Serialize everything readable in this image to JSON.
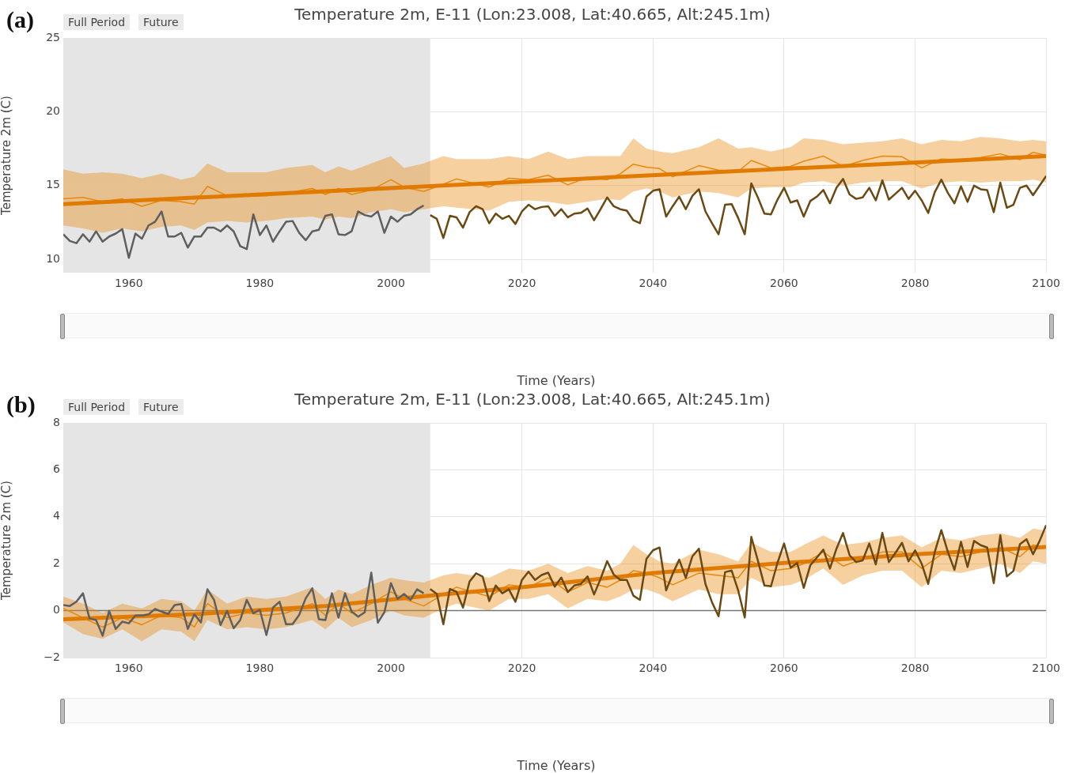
{
  "chart_data": [
    {
      "type": "line",
      "title": "Temperature 2m, E-11 (Lon:23.008, Lat:40.665, Alt:245.1m)",
      "xlabel": "Time (Years)",
      "ylabel": "Temperature 2m (C)",
      "annotations": [
        "(a)",
        "Full Period",
        "Future"
      ],
      "xlim": [
        1950,
        2100
      ],
      "ylim": [
        9.1,
        25
      ],
      "xticks": [
        1960,
        1980,
        2000,
        2020,
        2040,
        2060,
        2080,
        2100
      ],
      "yticks": [
        10,
        15,
        20,
        25
      ],
      "grid": true,
      "bands": [
        {
          "axis": "x",
          "from": 1950,
          "to": 2006,
          "color": "#e5e5e5"
        }
      ],
      "series": [
        {
          "color": "#e8890c",
          "x": [
            1950,
            1953,
            1956,
            1959,
            1962,
            1965,
            1968,
            1970,
            1972,
            1975,
            1978,
            1981,
            1984,
            1988,
            1990,
            1992,
            1994,
            1997,
            2000,
            2002,
            2005,
            2008,
            2010,
            2015,
            2018,
            2021,
            2024,
            2027,
            2030,
            2033,
            2035,
            2037,
            2039,
            2041,
            2043,
            2047,
            2050,
            2053,
            2055,
            2058,
            2061,
            2063,
            2066,
            2069,
            2072,
            2075,
            2078,
            2081,
            2084,
            2087,
            2090,
            2093,
            2096,
            2098,
            2100
          ],
          "values": [
            14.1,
            14.2,
            13.9,
            14.1,
            13.6,
            14.0,
            13.9,
            13.75,
            14.95,
            14.3,
            14.3,
            14.3,
            14.5,
            14.8,
            14.4,
            14.8,
            14.4,
            14.7,
            15.4,
            14.9,
            14.6,
            15.1,
            15.45,
            14.9,
            15.5,
            15.4,
            15.7,
            15.05,
            15.55,
            15.4,
            15.8,
            16.45,
            16.25,
            16.15,
            15.6,
            16.35,
            16.05,
            15.95,
            16.7,
            16.2,
            16.3,
            16.65,
            17.0,
            16.3,
            16.7,
            17.0,
            16.95,
            16.2,
            16.8,
            16.75,
            16.9,
            17.15,
            16.75,
            17.25,
            17.05
          ],
          "upper": [
            16.1,
            15.8,
            15.9,
            15.8,
            15.5,
            15.8,
            15.4,
            15.6,
            16.5,
            15.9,
            15.9,
            15.9,
            16.2,
            16.4,
            15.9,
            16.3,
            16.0,
            16.5,
            17.0,
            16.2,
            16.5,
            17.0,
            16.8,
            16.8,
            17.0,
            16.8,
            17.3,
            16.8,
            17.0,
            17.0,
            17.0,
            18.2,
            17.5,
            17.3,
            17.2,
            17.6,
            18.2,
            17.5,
            17.6,
            17.3,
            17.6,
            18.2,
            18.1,
            17.8,
            17.9,
            18.0,
            18.2,
            17.8,
            18.1,
            18.0,
            18.3,
            18.2,
            18.0,
            18.1,
            18.0
          ],
          "lower": [
            12.3,
            12.1,
            11.8,
            12.1,
            11.9,
            12.2,
            12.3,
            12.0,
            12.5,
            12.6,
            12.5,
            12.6,
            12.8,
            12.9,
            12.7,
            12.9,
            12.8,
            13.2,
            13.4,
            13.2,
            13.4,
            13.6,
            13.5,
            13.3,
            13.9,
            14.0,
            13.9,
            13.7,
            13.9,
            14.1,
            14.0,
            14.6,
            14.8,
            14.6,
            14.2,
            14.6,
            14.5,
            14.2,
            14.8,
            14.9,
            14.9,
            15.2,
            15.3,
            15.0,
            15.2,
            15.3,
            15.3,
            14.8,
            15.2,
            15.3,
            15.2,
            15.3,
            15.3,
            15.4,
            15.2
          ]
        },
        {
          "color": "#e07b00",
          "x": [
            1950,
            2100
          ],
          "values": [
            13.75,
            17.0
          ]
        },
        {
          "color": "#5f5f5f",
          "x": [
            1950,
            1951,
            1952,
            1953,
            1954,
            1955,
            1956,
            1957,
            1958,
            1959,
            1960,
            1961,
            1962,
            1963,
            1964,
            1965,
            1966,
            1967,
            1968,
            1969,
            1970,
            1971,
            1972,
            1973,
            1974,
            1975,
            1976,
            1977,
            1978,
            1979,
            1980,
            1981,
            1982,
            1983,
            1984,
            1985,
            1986,
            1987,
            1988,
            1989,
            1990,
            1991,
            1992,
            1993,
            1994,
            1995,
            1996,
            1997,
            1998,
            1999,
            2000,
            2001,
            2002,
            2003,
            2004,
            2005
          ],
          "values": [
            11.7,
            11.25,
            11.1,
            11.7,
            11.2,
            11.9,
            11.2,
            11.55,
            11.75,
            12.05,
            10.1,
            11.75,
            11.4,
            12.3,
            12.55,
            13.25,
            11.55,
            11.55,
            11.8,
            10.8,
            11.55,
            11.55,
            12.15,
            12.15,
            11.9,
            12.3,
            11.9,
            10.9,
            10.7,
            13.05,
            11.65,
            12.3,
            11.2,
            11.9,
            12.55,
            12.6,
            11.8,
            11.3,
            11.9,
            12.0,
            12.95,
            13.05,
            11.7,
            11.65,
            11.9,
            13.25,
            13.0,
            12.9,
            13.25,
            11.8,
            12.9,
            12.55,
            12.95,
            13.05,
            13.4,
            13.65
          ]
        },
        {
          "color": "#6b4913",
          "x": [
            2006,
            2007,
            2008,
            2009,
            2010,
            2011,
            2012,
            2013,
            2014,
            2015,
            2016,
            2017,
            2018,
            2019,
            2020,
            2021,
            2022,
            2023,
            2024,
            2025,
            2026,
            2027,
            2028,
            2029,
            2030,
            2031,
            2032,
            2033,
            2034,
            2035,
            2036,
            2037,
            2038,
            2039,
            2040,
            2041,
            2042,
            2043,
            2044,
            2045,
            2046,
            2047,
            2048,
            2049,
            2050,
            2051,
            2052,
            2053,
            2054,
            2055,
            2056,
            2057,
            2058,
            2059,
            2060,
            2061,
            2062,
            2063,
            2064,
            2065,
            2066,
            2067,
            2068,
            2069,
            2070,
            2071,
            2072,
            2073,
            2074,
            2075,
            2076,
            2077,
            2078,
            2079,
            2080,
            2081,
            2082,
            2083,
            2084,
            2085,
            2086,
            2087,
            2088,
            2089,
            2090,
            2091,
            2092,
            2093,
            2094,
            2095,
            2096,
            2097,
            2098,
            2099,
            2100
          ],
          "values": [
            13.0,
            12.75,
            11.45,
            12.95,
            12.85,
            12.15,
            13.2,
            13.6,
            13.4,
            12.45,
            13.1,
            12.75,
            12.95,
            12.4,
            13.25,
            13.7,
            13.4,
            13.55,
            13.6,
            12.95,
            13.4,
            12.85,
            13.1,
            13.15,
            13.45,
            12.65,
            13.4,
            14.2,
            13.6,
            13.4,
            13.3,
            12.65,
            12.45,
            14.25,
            14.65,
            14.75,
            12.9,
            13.6,
            14.25,
            13.4,
            14.3,
            14.75,
            13.25,
            12.45,
            11.7,
            13.7,
            13.75,
            12.8,
            11.7,
            15.15,
            14.2,
            13.1,
            13.05,
            14.05,
            14.85,
            13.85,
            14.0,
            12.9,
            13.95,
            14.25,
            14.7,
            13.8,
            14.85,
            15.45,
            14.4,
            14.1,
            14.2,
            14.85,
            14.0,
            15.35,
            14.05,
            14.45,
            14.85,
            14.1,
            14.65,
            14.0,
            13.15,
            14.55,
            15.4,
            14.5,
            13.8,
            14.95,
            13.9,
            15.0,
            14.75,
            14.7,
            13.2,
            15.2,
            13.5,
            13.7,
            14.85,
            15.0,
            14.35,
            15.0,
            15.65
          ]
        }
      ]
    },
    {
      "type": "line",
      "title": "Temperature 2m, E-11 (Lon:23.008, Lat:40.665, Alt:245.1m)",
      "xlabel": "Time (Years)",
      "ylabel": "Temperature 2m (C)",
      "annotations": [
        "(b)",
        "Full Period",
        "Future"
      ],
      "xlim": [
        1950,
        2100
      ],
      "ylim": [
        -2,
        8
      ],
      "xticks": [
        1960,
        1980,
        2000,
        2020,
        2040,
        2060,
        2080,
        2100
      ],
      "yticks": [
        {
          "value": -2,
          "label": "−2"
        },
        0,
        2,
        4,
        6,
        8
      ],
      "grid": true,
      "bands": [
        {
          "axis": "x",
          "from": 1950,
          "to": 2006,
          "color": "#e5e5e5"
        }
      ],
      "ref_lines": [
        {
          "axis": "y",
          "value": 0,
          "color": "#777777"
        }
      ],
      "series": [
        {
          "color": "#e8890c",
          "x": [
            1950,
            1953,
            1956,
            1959,
            1962,
            1965,
            1968,
            1970,
            1972,
            1975,
            1978,
            1981,
            1984,
            1988,
            1990,
            1992,
            1994,
            1997,
            2000,
            2002,
            2005,
            2008,
            2010,
            2015,
            2018,
            2021,
            2024,
            2027,
            2030,
            2033,
            2035,
            2037,
            2039,
            2041,
            2043,
            2047,
            2050,
            2053,
            2055,
            2058,
            2061,
            2063,
            2066,
            2069,
            2072,
            2075,
            2078,
            2081,
            2084,
            2087,
            2090,
            2093,
            2096,
            2098,
            2100
          ],
          "values": [
            0.1,
            -0.3,
            -0.7,
            -0.3,
            -0.6,
            -0.2,
            -0.3,
            -0.7,
            0.3,
            -0.3,
            -0.1,
            -0.2,
            -0.1,
            0.3,
            -0.2,
            0.3,
            -0.1,
            0.3,
            0.8,
            0.5,
            0.2,
            0.7,
            1.0,
            0.6,
            1.1,
            1.0,
            1.4,
            0.8,
            1.2,
            1.0,
            1.3,
            1.7,
            1.6,
            1.4,
            1.1,
            1.6,
            1.5,
            1.4,
            2.1,
            1.7,
            1.8,
            2.0,
            2.5,
            1.9,
            2.2,
            2.5,
            2.5,
            1.8,
            2.4,
            2.3,
            2.5,
            2.7,
            2.3,
            2.8,
            2.7
          ],
          "upper": [
            0.6,
            0.3,
            -0.1,
            0.3,
            0.1,
            0.5,
            0.4,
            0.0,
            0.9,
            0.3,
            0.6,
            0.5,
            0.6,
            1.0,
            0.5,
            0.9,
            0.7,
            1.1,
            1.4,
            1.3,
            1.2,
            1.5,
            1.6,
            1.4,
            1.8,
            1.7,
            2.0,
            1.6,
            1.9,
            1.7,
            2.0,
            2.8,
            2.4,
            2.1,
            2.0,
            2.6,
            2.4,
            2.1,
            2.9,
            2.5,
            2.5,
            2.8,
            3.2,
            2.8,
            2.9,
            3.1,
            3.2,
            2.7,
            3.1,
            3.0,
            3.2,
            3.3,
            3.1,
            3.5,
            3.4
          ],
          "lower": [
            -0.5,
            -1.0,
            -1.2,
            -0.8,
            -1.3,
            -0.8,
            -0.9,
            -1.3,
            -0.4,
            -0.8,
            -0.7,
            -0.8,
            -0.7,
            -0.4,
            -0.8,
            -0.3,
            -0.7,
            -0.4,
            0.0,
            -0.2,
            -0.3,
            0.1,
            0.3,
            0.0,
            0.5,
            0.5,
            0.7,
            0.1,
            0.5,
            0.4,
            0.6,
            0.9,
            0.9,
            0.7,
            0.4,
            0.9,
            0.7,
            0.7,
            1.4,
            1.0,
            1.1,
            1.3,
            1.8,
            1.1,
            1.5,
            1.7,
            1.7,
            1.0,
            1.7,
            1.6,
            1.8,
            2.0,
            1.6,
            2.1,
            2.0
          ]
        },
        {
          "color": "#e07b00",
          "x": [
            1950,
            1970,
            1990,
            2006,
            2020,
            2040,
            2060,
            2080,
            2100
          ],
          "values": [
            -0.37,
            -0.15,
            0.2,
            0.64,
            1.0,
            1.6,
            2.03,
            2.4,
            2.71
          ]
        },
        {
          "color": "#5f5f5f",
          "x": [
            1950,
            1951,
            1952,
            1953,
            1954,
            1955,
            1956,
            1957,
            1958,
            1959,
            1960,
            1961,
            1962,
            1963,
            1964,
            1965,
            1966,
            1967,
            1968,
            1969,
            1970,
            1971,
            1972,
            1973,
            1974,
            1975,
            1976,
            1977,
            1978,
            1979,
            1980,
            1981,
            1982,
            1983,
            1984,
            1985,
            1986,
            1987,
            1988,
            1989,
            1990,
            1991,
            1992,
            1993,
            1994,
            1995,
            1996,
            1997,
            1998,
            1999,
            2000,
            2001,
            2002,
            2003,
            2004,
            2005
          ],
          "values": [
            0.24,
            0.2,
            0.38,
            0.74,
            -0.33,
            -0.4,
            -1.07,
            -0.01,
            -0.78,
            -0.47,
            -0.54,
            -0.21,
            -0.21,
            -0.16,
            0.07,
            -0.04,
            -0.14,
            0.24,
            0.28,
            -0.78,
            -0.16,
            -0.5,
            0.91,
            0.46,
            -0.61,
            -0.01,
            -0.75,
            -0.4,
            0.46,
            -0.11,
            0.03,
            -1.04,
            0.13,
            0.38,
            -0.58,
            -0.57,
            -0.18,
            0.53,
            0.95,
            -0.37,
            -0.4,
            0.74,
            -0.3,
            0.74,
            -0.04,
            -0.26,
            -0.07,
            1.62,
            -0.51,
            -0.07,
            1.17,
            0.5,
            0.71,
            0.46,
            0.91,
            0.74
          ]
        },
        {
          "color": "#6b4913",
          "x": [
            2006,
            2007,
            2008,
            2009,
            2010,
            2011,
            2012,
            2013,
            2014,
            2015,
            2016,
            2017,
            2018,
            2019,
            2020,
            2021,
            2022,
            2023,
            2024,
            2025,
            2026,
            2027,
            2028,
            2029,
            2030,
            2031,
            2032,
            2033,
            2034,
            2035,
            2036,
            2037,
            2038,
            2039,
            2040,
            2041,
            2042,
            2043,
            2044,
            2045,
            2046,
            2047,
            2048,
            2049,
            2050,
            2051,
            2052,
            2053,
            2054,
            2055,
            2056,
            2057,
            2058,
            2059,
            2060,
            2061,
            2062,
            2063,
            2064,
            2065,
            2066,
            2067,
            2068,
            2069,
            2070,
            2071,
            2072,
            2073,
            2074,
            2075,
            2076,
            2077,
            2078,
            2079,
            2080,
            2081,
            2082,
            2083,
            2084,
            2085,
            2086,
            2087,
            2088,
            2089,
            2090,
            2091,
            2092,
            2093,
            2094,
            2095,
            2096,
            2097,
            2098,
            2099,
            2100
          ],
          "values": [
            0.92,
            0.71,
            -0.58,
            0.92,
            0.81,
            0.13,
            1.24,
            1.59,
            1.45,
            0.41,
            1.07,
            0.74,
            0.91,
            0.38,
            1.31,
            1.66,
            1.31,
            1.52,
            1.62,
            1.02,
            1.41,
            0.79,
            1.07,
            1.14,
            1.46,
            0.69,
            1.36,
            2.11,
            1.54,
            1.31,
            1.31,
            0.64,
            0.46,
            2.21,
            2.57,
            2.69,
            0.86,
            1.57,
            2.17,
            1.4,
            2.31,
            2.64,
            1.14,
            0.36,
            -0.24,
            1.64,
            1.71,
            0.86,
            -0.29,
            3.14,
            2.14,
            1.07,
            1.04,
            2.04,
            2.86,
            1.83,
            2.03,
            0.97,
            1.93,
            2.26,
            2.6,
            1.79,
            2.64,
            3.31,
            2.36,
            2.07,
            2.14,
            2.86,
            1.97,
            3.31,
            2.07,
            2.46,
            2.89,
            2.1,
            2.57,
            2.0,
            1.14,
            2.5,
            3.43,
            2.5,
            1.74,
            2.93,
            1.86,
            2.97,
            2.79,
            2.69,
            1.17,
            3.21,
            1.46,
            1.69,
            2.83,
            3.04,
            2.4,
            2.97,
            3.64
          ]
        }
      ]
    }
  ]
}
